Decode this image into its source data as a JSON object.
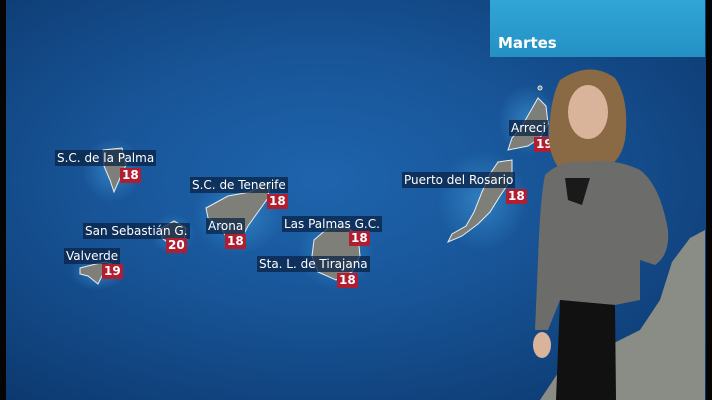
{
  "header": {
    "day": "Martes"
  },
  "colors": {
    "ocean": "#185598",
    "day_box": "#2aa0d0",
    "temp_box": "#b01e32",
    "island": "#7d7f78"
  },
  "cities": [
    {
      "name": "S.C. de la Palma",
      "temp": "18"
    },
    {
      "name": "S.C. de Tenerife",
      "temp": "18"
    },
    {
      "name": "San Sebastián G.",
      "temp": "20"
    },
    {
      "name": "Arona",
      "temp": "18"
    },
    {
      "name": "Las Palmas G.C.",
      "temp": "18"
    },
    {
      "name": "Sta. L. de Tirajana",
      "temp": "18"
    },
    {
      "name": "Valverde",
      "temp": "19"
    },
    {
      "name": "Puerto del Rosario",
      "temp": "18"
    },
    {
      "name": "Arreci",
      "temp": "19"
    }
  ]
}
